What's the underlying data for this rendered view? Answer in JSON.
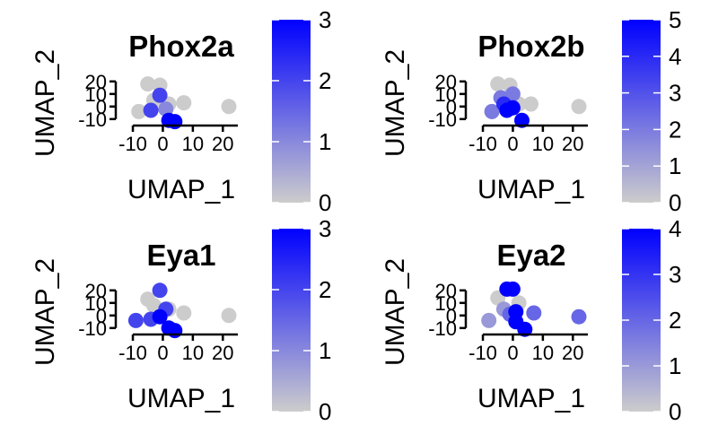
{
  "colors": {
    "low": "#cccccc",
    "high": "#0000ff",
    "axis": "#000000",
    "background": "#ffffff"
  },
  "chart_data": [
    {
      "type": "scatter",
      "title": "Phox2a",
      "xlabel": "UMAP_1",
      "ylabel": "UMAP_2",
      "x_ticks": [
        -10,
        0,
        10,
        20
      ],
      "x_tick_labels": [
        "-10",
        "0",
        "10",
        "20"
      ],
      "y_ticks": [
        -10,
        0,
        10,
        20
      ],
      "y_tick_labels": [
        "-10",
        "0",
        "10",
        "20"
      ],
      "xlim": [
        -13,
        25
      ],
      "ylim": [
        -13,
        22
      ],
      "color_scale": {
        "min": 0,
        "max": 3,
        "ticks": [
          0,
          1,
          2,
          3
        ],
        "tick_labels": [
          "0",
          "1",
          "2",
          "3"
        ]
      },
      "points": [
        {
          "x": -8,
          "y": -4,
          "value": 0
        },
        {
          "x": -5,
          "y": 18,
          "value": 0
        },
        {
          "x": -1,
          "y": 17,
          "value": 0
        },
        {
          "x": -3,
          "y": 5,
          "value": 0
        },
        {
          "x": 2,
          "y": 2,
          "value": 0
        },
        {
          "x": 7,
          "y": 3,
          "value": 0
        },
        {
          "x": 22,
          "y": 0,
          "value": 0
        },
        {
          "x": -4,
          "y": -3,
          "value": 2
        },
        {
          "x": -1,
          "y": 9,
          "value": 2
        },
        {
          "x": 1,
          "y": -2,
          "value": 1
        },
        {
          "x": 2,
          "y": -11,
          "value": 3
        },
        {
          "x": 4,
          "y": -12,
          "value": 3
        }
      ]
    },
    {
      "type": "scatter",
      "title": "Phox2b",
      "xlabel": "UMAP_1",
      "ylabel": "UMAP_2",
      "x_ticks": [
        -10,
        0,
        10,
        20
      ],
      "x_tick_labels": [
        "-10",
        "0",
        "10",
        "20"
      ],
      "y_ticks": [
        -10,
        0,
        10,
        20
      ],
      "y_tick_labels": [
        "-10",
        "0",
        "10",
        "20"
      ],
      "xlim": [
        -13,
        25
      ],
      "ylim": [
        -13,
        22
      ],
      "color_scale": {
        "min": 0,
        "max": 5,
        "ticks": [
          0,
          1,
          2,
          3,
          4,
          5
        ],
        "tick_labels": [
          "0",
          "1",
          "2",
          "3",
          "4",
          "5"
        ]
      },
      "points": [
        {
          "x": -5,
          "y": 18,
          "value": 0
        },
        {
          "x": -1,
          "y": 17,
          "value": 0
        },
        {
          "x": 2,
          "y": 2,
          "value": 0
        },
        {
          "x": 6,
          "y": 2,
          "value": 0
        },
        {
          "x": 22,
          "y": 0,
          "value": 0
        },
        {
          "x": -7,
          "y": -4,
          "value": 2
        },
        {
          "x": -4,
          "y": 7,
          "value": 2
        },
        {
          "x": 0,
          "y": 10,
          "value": 2
        },
        {
          "x": -3,
          "y": 2,
          "value": 4
        },
        {
          "x": -2,
          "y": -3,
          "value": 5
        },
        {
          "x": 0,
          "y": -1,
          "value": 5
        },
        {
          "x": 3,
          "y": -11,
          "value": 5
        }
      ]
    },
    {
      "type": "scatter",
      "title": "Eya1",
      "xlabel": "UMAP_1",
      "ylabel": "UMAP_2",
      "x_ticks": [
        -10,
        0,
        10,
        20
      ],
      "x_tick_labels": [
        "-10",
        "0",
        "10",
        "20"
      ],
      "y_ticks": [
        -10,
        0,
        10,
        20
      ],
      "y_tick_labels": [
        "-10",
        "0",
        "10",
        "20"
      ],
      "xlim": [
        -13,
        25
      ],
      "ylim": [
        -13,
        22
      ],
      "color_scale": {
        "min": 0,
        "max": 3,
        "ticks": [
          0,
          1,
          2,
          3
        ],
        "tick_labels": [
          "0",
          "1",
          "2",
          "3"
        ]
      },
      "points": [
        {
          "x": -5,
          "y": 13,
          "value": 0
        },
        {
          "x": -3,
          "y": 8,
          "value": 0
        },
        {
          "x": 2,
          "y": 5,
          "value": 0
        },
        {
          "x": 7,
          "y": 2,
          "value": 0
        },
        {
          "x": 22,
          "y": 0,
          "value": 0
        },
        {
          "x": -1,
          "y": 20,
          "value": 2
        },
        {
          "x": -9,
          "y": -4,
          "value": 2
        },
        {
          "x": -4,
          "y": -3,
          "value": 2
        },
        {
          "x": 1,
          "y": 5,
          "value": 2
        },
        {
          "x": -1,
          "y": -1,
          "value": 3
        },
        {
          "x": 2,
          "y": -10,
          "value": 3
        },
        {
          "x": 4,
          "y": -12,
          "value": 3
        }
      ]
    },
    {
      "type": "scatter",
      "title": "Eya2",
      "xlabel": "UMAP_1",
      "ylabel": "UMAP_2",
      "x_ticks": [
        -10,
        0,
        10,
        20
      ],
      "x_tick_labels": [
        "-10",
        "0",
        "10",
        "20"
      ],
      "y_ticks": [
        -10,
        0,
        10,
        20
      ],
      "y_tick_labels": [
        "-10",
        "0",
        "10",
        "20"
      ],
      "xlim": [
        -13,
        25
      ],
      "ylim": [
        -13,
        22
      ],
      "color_scale": {
        "min": 0,
        "max": 4,
        "ticks": [
          0,
          1,
          2,
          3,
          4
        ],
        "tick_labels": [
          "0",
          "1",
          "2",
          "3",
          "4"
        ]
      },
      "points": [
        {
          "x": -5,
          "y": 14,
          "value": 0
        },
        {
          "x": 2,
          "y": 10,
          "value": 0
        },
        {
          "x": -8,
          "y": -4,
          "value": 1
        },
        {
          "x": -3,
          "y": 5,
          "value": 1
        },
        {
          "x": 7,
          "y": 2,
          "value": 2
        },
        {
          "x": 22,
          "y": -1,
          "value": 2
        },
        {
          "x": -1,
          "y": 1,
          "value": 2
        },
        {
          "x": -2,
          "y": 21,
          "value": 4
        },
        {
          "x": 0,
          "y": 21,
          "value": 4
        },
        {
          "x": 1,
          "y": 3,
          "value": 4
        },
        {
          "x": 1,
          "y": -5,
          "value": 4
        },
        {
          "x": 4,
          "y": -11,
          "value": 4
        }
      ]
    }
  ]
}
